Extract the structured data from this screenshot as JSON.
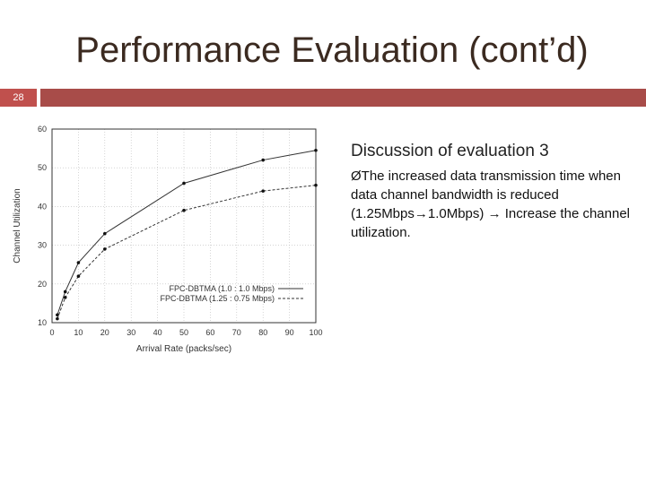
{
  "slide": {
    "title": "Performance Evaluation (cont’d)",
    "page_number": "28",
    "accent_colors": {
      "number_box": "#c0504d",
      "bar": "#a84c49",
      "title": "#3b2a20"
    },
    "discussion_heading": "Discussion of evaluation 3",
    "bullet_marker": "Ø",
    "bullet_text": "The increased data transmission time when data channel bandwidth is reduced  (1.25Mbps→1.0Mbps) → Increase the channel utilization."
  },
  "chart_data": {
    "type": "line",
    "xlabel": "Arrival Rate (packs/sec)",
    "ylabel": "Channel Utilization",
    "xlim": [
      0,
      100
    ],
    "ylim": [
      10,
      60
    ],
    "x_ticks": [
      "0",
      "10",
      "20",
      "30",
      "40",
      "50",
      "60",
      "70",
      "80",
      "90",
      "100"
    ],
    "y_ticks": [
      "10",
      "20",
      "30",
      "40",
      "50",
      "60"
    ],
    "grid": true,
    "legend_position": "bottom-right",
    "series": [
      {
        "name": "FPC-DBTMA (1.0 : 1.0 Mbps)",
        "style": "solid",
        "x": [
          2,
          5,
          10,
          20,
          50,
          80,
          100
        ],
        "values": [
          12,
          18,
          25.5,
          33,
          46,
          52,
          54.5
        ]
      },
      {
        "name": "FPC-DBTMA (1.25 : 0.75 Mbps)",
        "style": "dashed",
        "x": [
          2,
          5,
          10,
          20,
          50,
          80,
          100
        ],
        "values": [
          11,
          16.5,
          22,
          29,
          39,
          44,
          45.5
        ]
      }
    ]
  }
}
